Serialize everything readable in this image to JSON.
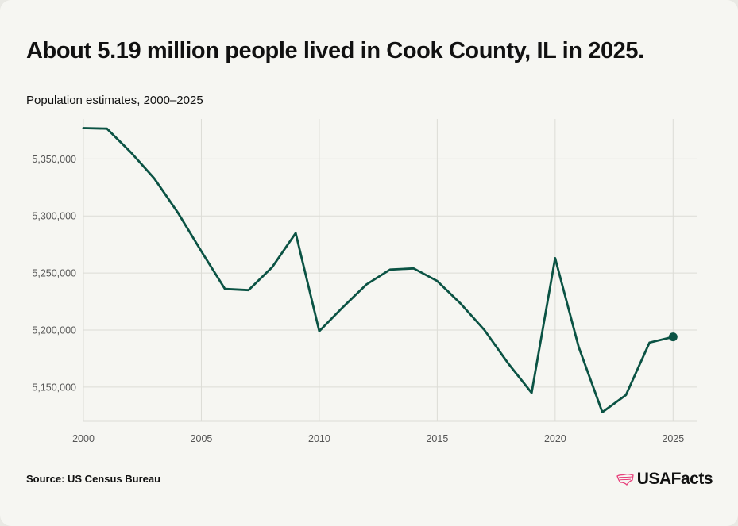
{
  "header": {
    "title": "About 5.19 million people lived in Cook County, IL in 2025.",
    "subtitle": "Population estimates, 2000–2025"
  },
  "footer": {
    "source": "Source: US Census Bureau",
    "brand": "USAFacts"
  },
  "colors": {
    "line": "#0b5344",
    "grid": "#dcdcd6",
    "brand_accent": "#e8417c"
  },
  "chart_data": {
    "type": "line",
    "title": "About 5.19 million people lived in Cook County, IL in 2025.",
    "subtitle": "Population estimates, 2000–2025",
    "xlabel": "",
    "ylabel": "",
    "x": [
      2000,
      2001,
      2002,
      2003,
      2004,
      2005,
      2006,
      2007,
      2008,
      2009,
      2010,
      2011,
      2012,
      2013,
      2014,
      2015,
      2016,
      2017,
      2018,
      2019,
      2020,
      2021,
      2022,
      2023,
      2024,
      2025
    ],
    "series": [
      {
        "values": [
          5377000,
          5376500,
          5356000,
          5333000,
          5303000,
          5269000,
          5236000,
          5235000,
          5255000,
          5285000,
          5199000,
          5220000,
          5240000,
          5253000,
          5254000,
          5243000,
          5223000,
          5200000,
          5171000,
          5145000,
          5263000,
          5185000,
          5128000,
          5143000,
          5189000,
          5194000
        ]
      }
    ],
    "xlim": [
      2000,
      2026
    ],
    "ylim": [
      5120000,
      5385000
    ],
    "xticks": [
      2000,
      2005,
      2010,
      2015,
      2020,
      2025
    ],
    "xtick_labels": [
      "2000",
      "2005",
      "2010",
      "2015",
      "2020",
      "2025"
    ],
    "yticks": [
      5150000,
      5200000,
      5250000,
      5300000,
      5350000
    ],
    "ytick_labels": [
      "5,150,000",
      "5,200,000",
      "5,250,000",
      "5,300,000",
      "5,350,000"
    ],
    "grid": true,
    "highlight_last_point": true
  }
}
